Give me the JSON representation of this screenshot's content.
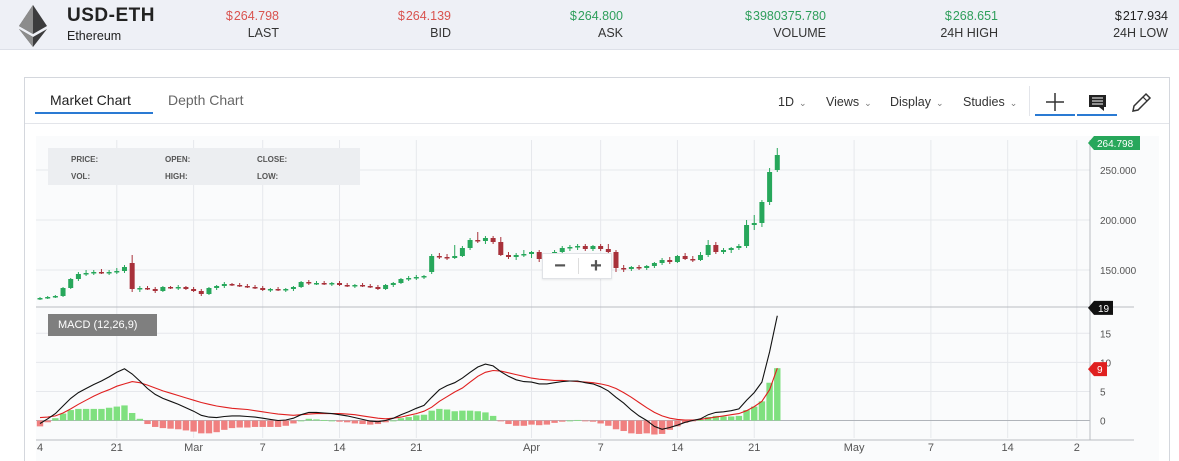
{
  "ticker": {
    "pair": "USD-ETH",
    "name": "Ethereum",
    "currency": "$",
    "stats": [
      {
        "key": "last",
        "value": "264.798",
        "label": "LAST",
        "color": "#d9534f"
      },
      {
        "key": "bid",
        "value": "264.139",
        "label": "BID",
        "color": "#d9534f"
      },
      {
        "key": "ask",
        "value": "264.800",
        "label": "ASK",
        "color": "#2e9e5b"
      },
      {
        "key": "volume",
        "value": "3980375.780",
        "label": "VOLUME",
        "color": "#2e9e5b"
      },
      {
        "key": "high",
        "value": "268.651",
        "label": "24H HIGH",
        "color": "#2e9e5b"
      },
      {
        "key": "low",
        "value": "217.934",
        "label": "24H LOW",
        "color": "#222222"
      }
    ]
  },
  "tabs": [
    {
      "label": "Market Chart",
      "active": true
    },
    {
      "label": "Depth Chart",
      "active": false
    }
  ],
  "menus": [
    {
      "label": "1D"
    },
    {
      "label": "Views"
    },
    {
      "label": "Display"
    },
    {
      "label": "Studies"
    }
  ],
  "tools": [
    {
      "name": "crosshair-icon",
      "active": true
    },
    {
      "name": "comment-icon",
      "active": true
    },
    {
      "name": "pencil-icon",
      "active": false
    }
  ],
  "infobox": {
    "price": "PRICE:",
    "open": "OPEN:",
    "close": "CLOSE:",
    "vol": "VOL:",
    "high": "HIGH:",
    "low": "LOW:"
  },
  "zoom": {
    "minus": "−",
    "plus": "+"
  },
  "macd_label": "MACD (12,26,9)",
  "colors": {
    "up": "#27a75b",
    "down": "#a8313a",
    "accent": "#2a7ad3",
    "signal": "#e02020",
    "macd": "#111111",
    "hist_up": "#7fe07f",
    "hist_down": "#f08080"
  },
  "chart_data": {
    "type": "candlestick",
    "price_axis": {
      "ticks": [
        150,
        200,
        250
      ],
      "labels": [
        "150.000",
        "200.000",
        "250.000"
      ],
      "range": [
        115,
        280
      ]
    },
    "last_price_label": "264.798",
    "x_ticks": [
      {
        "i": 0,
        "label": "4"
      },
      {
        "i": 10,
        "label": "21"
      },
      {
        "i": 20,
        "label": "Mar"
      },
      {
        "i": 29,
        "label": "7"
      },
      {
        "i": 39,
        "label": "14"
      },
      {
        "i": 49,
        "label": "21"
      },
      {
        "i": 64,
        "label": "Apr"
      },
      {
        "i": 73,
        "label": "7"
      },
      {
        "i": 83,
        "label": "14"
      },
      {
        "i": 93,
        "label": "21"
      },
      {
        "i": 106,
        "label": "May"
      },
      {
        "i": 116,
        "label": "7"
      },
      {
        "i": 126,
        "label": "14"
      },
      {
        "i": 135,
        "label": "2"
      }
    ],
    "candles": [
      [
        121,
        123,
        120,
        122
      ],
      [
        122,
        124,
        121,
        123
      ],
      [
        123,
        125,
        122,
        124
      ],
      [
        124,
        133,
        123,
        132
      ],
      [
        132,
        142,
        131,
        141
      ],
      [
        141,
        148,
        139,
        146
      ],
      [
        146,
        150,
        144,
        147
      ],
      [
        147,
        150,
        145,
        148
      ],
      [
        148,
        151,
        146,
        147
      ],
      [
        147,
        150,
        145,
        148
      ],
      [
        148,
        152,
        146,
        149
      ],
      [
        149,
        155,
        147,
        153
      ],
      [
        157,
        165,
        128,
        131
      ],
      [
        131,
        134,
        128,
        132
      ],
      [
        132,
        134,
        130,
        131
      ],
      [
        131,
        133,
        127,
        129
      ],
      [
        129,
        134,
        128,
        133
      ],
      [
        133,
        134,
        131,
        132
      ],
      [
        132,
        135,
        130,
        133
      ],
      [
        133,
        134,
        130,
        131
      ],
      [
        131,
        133,
        128,
        129
      ],
      [
        129,
        131,
        124,
        126
      ],
      [
        126,
        133,
        125,
        132
      ],
      [
        132,
        135,
        130,
        134
      ],
      [
        134,
        138,
        132,
        136
      ],
      [
        136,
        137,
        134,
        135
      ],
      [
        135,
        137,
        133,
        134
      ],
      [
        134,
        136,
        132,
        133
      ],
      [
        133,
        135,
        131,
        132
      ],
      [
        132,
        134,
        129,
        130
      ],
      [
        130,
        132,
        128,
        131
      ],
      [
        131,
        133,
        129,
        130
      ],
      [
        130,
        132,
        128,
        131
      ],
      [
        131,
        134,
        129,
        133
      ],
      [
        133,
        139,
        132,
        138
      ],
      [
        138,
        140,
        135,
        137
      ],
      [
        137,
        139,
        135,
        137
      ],
      [
        137,
        139,
        135,
        136
      ],
      [
        136,
        138,
        134,
        137
      ],
      [
        137,
        139,
        134,
        135
      ],
      [
        135,
        137,
        133,
        134
      ],
      [
        134,
        136,
        132,
        135
      ],
      [
        135,
        137,
        133,
        134
      ],
      [
        134,
        136,
        132,
        133
      ],
      [
        133,
        135,
        130,
        131
      ],
      [
        131,
        136,
        130,
        135
      ],
      [
        135,
        138,
        133,
        137
      ],
      [
        137,
        142,
        136,
        141
      ],
      [
        141,
        144,
        139,
        142
      ],
      [
        142,
        145,
        140,
        143
      ],
      [
        143,
        145,
        141,
        144
      ],
      [
        148,
        166,
        146,
        164
      ],
      [
        164,
        167,
        161,
        163
      ],
      [
        163,
        166,
        160,
        162
      ],
      [
        162,
        175,
        161,
        164
      ],
      [
        164,
        174,
        163,
        172
      ],
      [
        172,
        182,
        170,
        180
      ],
      [
        180,
        188,
        177,
        179
      ],
      [
        179,
        184,
        176,
        182
      ],
      [
        182,
        184,
        176,
        178
      ],
      [
        178,
        183,
        164,
        165
      ],
      [
        165,
        168,
        161,
        163
      ],
      [
        163,
        167,
        160,
        165
      ],
      [
        165,
        170,
        163,
        166
      ],
      [
        166,
        169,
        162,
        168
      ],
      [
        168,
        170,
        158,
        161
      ],
      [
        161,
        166,
        158,
        163
      ],
      [
        163,
        170,
        162,
        168
      ],
      [
        168,
        174,
        166,
        172
      ],
      [
        172,
        175,
        169,
        173
      ],
      [
        173,
        176,
        170,
        174
      ],
      [
        174,
        176,
        169,
        171
      ],
      [
        171,
        175,
        169,
        174
      ],
      [
        174,
        176,
        169,
        171
      ],
      [
        171,
        176,
        166,
        168
      ],
      [
        168,
        170,
        148,
        152
      ],
      [
        152,
        155,
        148,
        151
      ],
      [
        151,
        154,
        149,
        153
      ],
      [
        153,
        155,
        150,
        152
      ],
      [
        152,
        155,
        150,
        154
      ],
      [
        154,
        158,
        152,
        157
      ],
      [
        157,
        162,
        155,
        160
      ],
      [
        160,
        163,
        156,
        158
      ],
      [
        158,
        165,
        157,
        164
      ],
      [
        164,
        167,
        160,
        161
      ],
      [
        161,
        164,
        158,
        160
      ],
      [
        160,
        168,
        159,
        165
      ],
      [
        165,
        180,
        163,
        175
      ],
      [
        175,
        178,
        166,
        168
      ],
      [
        168,
        172,
        166,
        170
      ],
      [
        170,
        173,
        167,
        172
      ],
      [
        172,
        176,
        170,
        174
      ],
      [
        174,
        200,
        172,
        195
      ],
      [
        195,
        205,
        190,
        197
      ],
      [
        197,
        220,
        193,
        218
      ],
      [
        218,
        252,
        215,
        248
      ],
      [
        250,
        272,
        248,
        265
      ]
    ],
    "macd_axis": {
      "ticks": [
        0,
        5,
        10,
        15
      ],
      "labels": [
        "0",
        "5",
        "10",
        "15"
      ],
      "range": [
        -3,
        19
      ]
    },
    "macd_last_label": "19",
    "signal_last_label": "9",
    "macd": [
      -0.5,
      0.3,
      1.2,
      2.5,
      3.8,
      4.8,
      5.5,
      6.2,
      6.8,
      7.5,
      8.3,
      8.9,
      8.0,
      6.8,
      5.5,
      4.5,
      3.8,
      3.3,
      2.8,
      2.2,
      1.6,
      0.9,
      0.6,
      0.5,
      0.7,
      0.8,
      0.8,
      0.7,
      0.6,
      0.4,
      0.2,
      0.0,
      0.1,
      0.4,
      1.0,
      1.4,
      1.4,
      1.3,
      1.2,
      1.0,
      0.8,
      0.5,
      0.2,
      -0.1,
      -0.2,
      0.0,
      0.4,
      1.0,
      1.5,
      2.1,
      2.6,
      4.0,
      5.3,
      6.0,
      6.5,
      7.3,
      8.3,
      9.2,
      9.7,
      9.4,
      8.4,
      7.6,
      7.0,
      6.7,
      6.6,
      6.3,
      6.3,
      6.5,
      6.7,
      6.8,
      6.8,
      6.5,
      6.3,
      5.8,
      5.1,
      4.0,
      3.0,
      1.8,
      0.8,
      0.0,
      -1.0,
      -1.5,
      -1.2,
      -0.8,
      -0.3,
      0.0,
      0.3,
      1.0,
      1.4,
      1.5,
      1.7,
      2.0,
      3.5,
      4.8,
      6.6,
      11.8,
      18.0
    ],
    "signal": [
      0.5,
      0.6,
      0.8,
      1.3,
      2.0,
      2.8,
      3.5,
      4.2,
      4.8,
      5.3,
      5.9,
      6.3,
      6.7,
      6.5,
      6.1,
      5.6,
      5.1,
      4.7,
      4.3,
      3.9,
      3.5,
      3.1,
      2.8,
      2.5,
      2.3,
      2.1,
      2.0,
      1.9,
      1.7,
      1.5,
      1.3,
      1.1,
      1.0,
      0.9,
      1.0,
      1.1,
      1.2,
      1.2,
      1.2,
      1.2,
      1.1,
      1.0,
      0.8,
      0.6,
      0.4,
      0.3,
      0.4,
      0.6,
      0.9,
      1.2,
      1.6,
      2.3,
      3.3,
      4.1,
      4.9,
      5.6,
      6.6,
      7.6,
      8.3,
      8.6,
      8.5,
      8.2,
      7.9,
      7.6,
      7.3,
      7.1,
      7.0,
      6.9,
      6.9,
      6.8,
      6.7,
      6.6,
      6.5,
      6.3,
      6.0,
      5.5,
      4.8,
      4.0,
      3.1,
      2.2,
      1.4,
      0.8,
      0.4,
      0.2,
      0.1,
      0.1,
      0.2,
      0.4,
      0.6,
      0.8,
      1.0,
      1.2,
      1.7,
      2.4,
      3.3,
      5.3,
      9.0
    ]
  }
}
